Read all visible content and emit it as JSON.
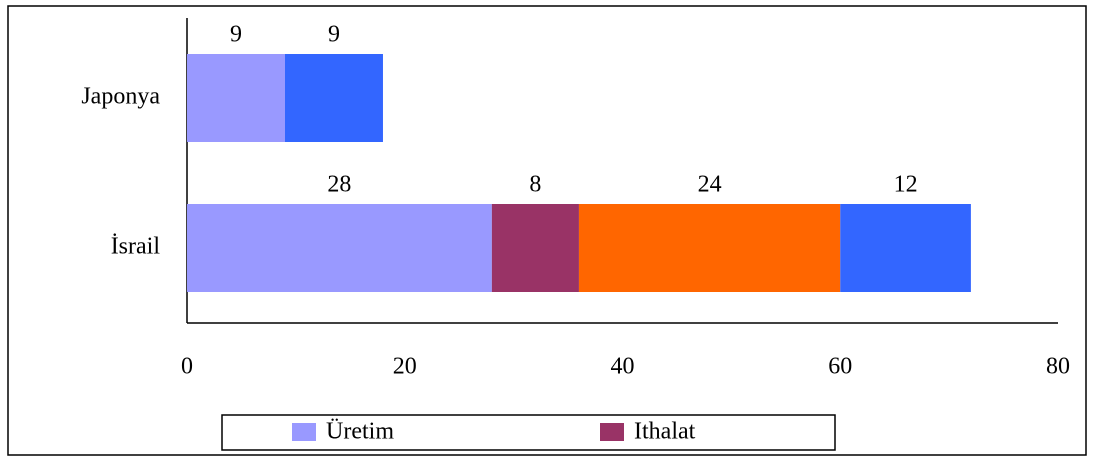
{
  "chart_data": {
    "type": "stacked_barh",
    "categories": [
      "Japonya",
      "İsrail"
    ],
    "series": [
      {
        "name": "Üretim",
        "color": "#9999ff",
        "values": [
          9,
          28
        ]
      },
      {
        "name": "Ithalat",
        "color": "#993366",
        "values": [
          null,
          8
        ]
      },
      {
        "color": "#ff6600",
        "values": [
          null,
          24
        ]
      },
      {
        "color": "#3366ff",
        "values": [
          9,
          12
        ]
      }
    ],
    "xlim": [
      0,
      80
    ],
    "xticks": [
      0,
      20,
      40,
      60,
      80
    ],
    "grid": false,
    "legend": "bottom"
  }
}
